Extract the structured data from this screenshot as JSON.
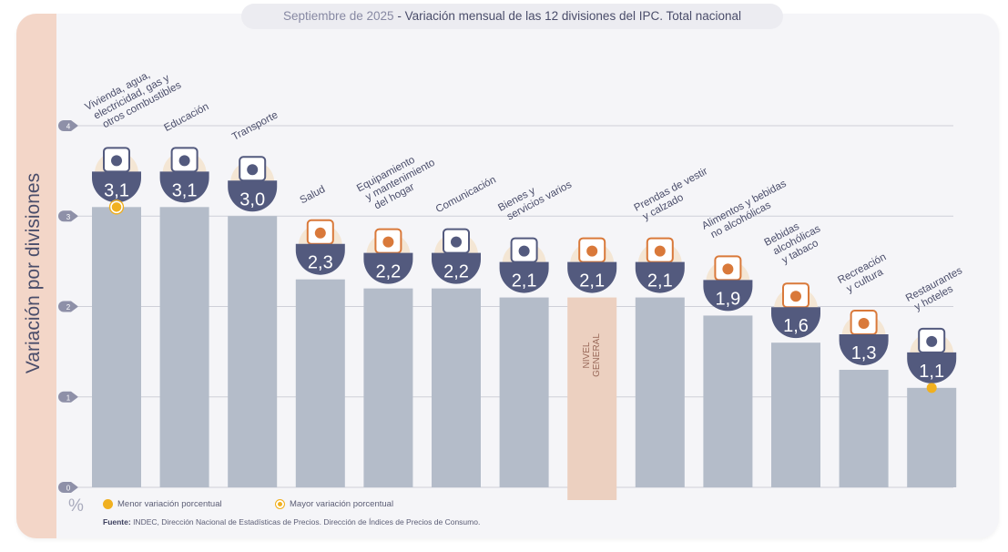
{
  "header": {
    "title_date": "Septiembre de 2025",
    "title_sep": " - ",
    "title_main": "Variación mensual de las 12 divisiones del IPC. Total nacional"
  },
  "legend": {
    "min_label": "Menor variación porcentual",
    "max_label": "Mayor variación porcentual"
  },
  "footer": {
    "unit": "%",
    "source_label": "Fuente:",
    "source_text": " INDEC, Dirección Nacional de Estadísticas de Precios. Dirección de Índices de Precios de Consumo."
  },
  "colors": {
    "bar": "#b4bcc9",
    "bar_general": "#ecd0c0",
    "badge": "#535a7e",
    "accent": "#f0b020",
    "icon_orange": "#d9793a",
    "label": "#4a4d6a"
  },
  "chart_data": {
    "type": "bar",
    "title": "Septiembre de 2025 - Variación mensual de las 12 divisiones del IPC. Total nacional",
    "xlabel": "",
    "ylabel": "Variación por divisiones",
    "yunit": "%",
    "ylim": [
      0,
      4
    ],
    "yticks": [
      0,
      1,
      2,
      3,
      4
    ],
    "grid": true,
    "categories": [
      "Vivienda, agua, electricidad, gas y otros combustibles",
      "Educación",
      "Transporte",
      "Salud",
      "Equipamiento y mantenimiento del hogar",
      "Comunicación",
      "Bienes y servicios varios",
      "Nivel general",
      "Prendas de vestir y calzado",
      "Alimentos y bebidas no alcohólicas",
      "Bebidas alcohólicas y tabaco",
      "Recreación y cultura",
      "Restaurantes y hoteles"
    ],
    "category_label_lines": [
      [
        "Vivienda, agua,",
        "electricidad, gas y",
        "otros combustibles"
      ],
      [
        "Educación"
      ],
      [
        "Transporte"
      ],
      [
        "Salud"
      ],
      [
        "Equipamiento",
        "y mantenimiento",
        "del hogar"
      ],
      [
        "Comunicación"
      ],
      [
        "Bienes y",
        "servicios varios"
      ],
      [],
      [
        "Prendas de vestir",
        "y calzado"
      ],
      [
        "Alimentos y bebidas",
        "no alcohólicas"
      ],
      [
        "Bebidas",
        "alcohólicas",
        "y tabaco"
      ],
      [
        "Recreación",
        "y cultura"
      ],
      [
        "Restaurantes",
        "y hoteles"
      ]
    ],
    "icons": [
      "key-and-lightbulb-icon",
      "notebook-and-pencil-icon",
      "sube-card-and-car-icon",
      "first-aid-cross-icon",
      "washing-machine-and-air-conditioner-icon",
      "smartphone-icon",
      "comb-and-scissors-icon",
      "shopping-bag-icon",
      "tshirt-and-shoe-icon",
      "roast-chicken-icon",
      "wine-bottle-and-glass-icon",
      "beach-umbrella-icon",
      "plate-and-cutlery-icon"
    ],
    "values": [
      3.1,
      3.1,
      3.0,
      2.3,
      2.2,
      2.2,
      2.1,
      2.1,
      2.1,
      1.9,
      1.6,
      1.3,
      1.1
    ],
    "value_labels": [
      "3,1",
      "3,1",
      "3,0",
      "2,3",
      "2,2",
      "2,2",
      "2,1",
      "2,1",
      "2,1",
      "1,9",
      "1,6",
      "1,3",
      "1,1"
    ],
    "highlight_index": 7,
    "highlight_text": [
      "NIVEL",
      "GENERAL"
    ],
    "max_marker_index": 0,
    "min_marker_index": 12
  }
}
